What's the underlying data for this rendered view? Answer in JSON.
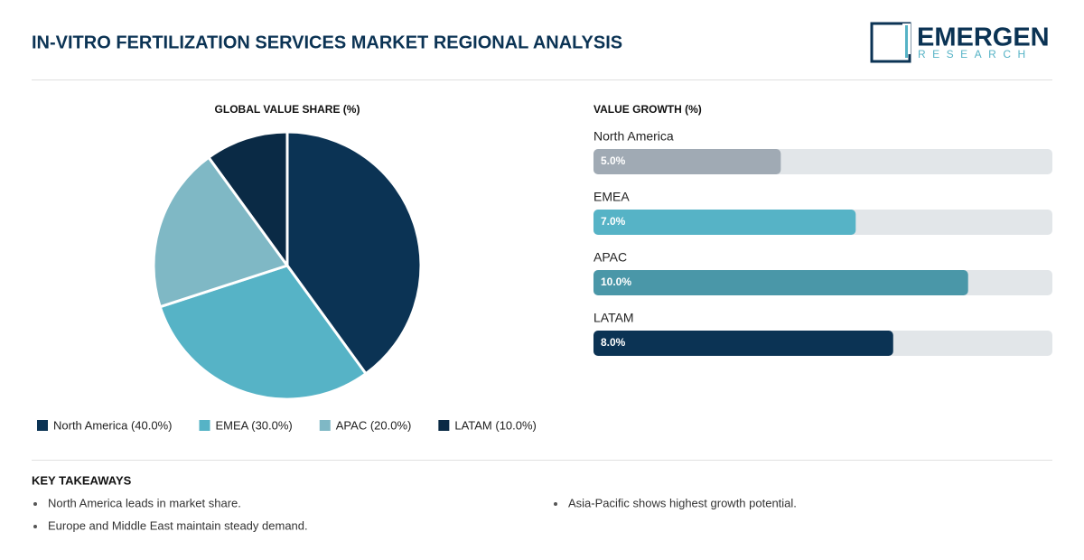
{
  "title": "IN-VITRO FERTILIZATION SERVICES MARKET REGIONAL ANALYSIS",
  "logo": {
    "name": "EMERGEN",
    "sub": "RESEARCH"
  },
  "chart_data": [
    {
      "type": "pie",
      "title": "GLOBAL VALUE SHARE (%)",
      "categories": [
        "North America",
        "EMEA",
        "APAC",
        "LATAM"
      ],
      "values": [
        40,
        30,
        20,
        10
      ],
      "colors": [
        "#0b3354",
        "#56b3c6",
        "#7fb8c5",
        "#0a2a45"
      ],
      "legend_labels": [
        "North America (40.0%)",
        "EMEA (30.0%)",
        "APAC (20.0%)",
        "LATAM (10.0%)"
      ]
    },
    {
      "type": "hbar",
      "title": "VALUE GROWTH (%)",
      "categories": [
        "North America",
        "EMEA",
        "APAC",
        "LATAM"
      ],
      "values": [
        5,
        7,
        10,
        8
      ],
      "value_labels": [
        "5.0%",
        "7.0%",
        "10.0%",
        "8.0%"
      ],
      "colors": [
        "#a0aab4",
        "#56b3c6",
        "#4a97a8",
        "#0b3354"
      ],
      "xlim": [
        0,
        12.25
      ]
    }
  ],
  "takeaways": {
    "title": "KEY TAKEAWAYS",
    "items": [
      "North America leads in market share.",
      "Europe and Middle East maintain steady demand.",
      "Asia-Pacific shows highest growth potential."
    ]
  }
}
